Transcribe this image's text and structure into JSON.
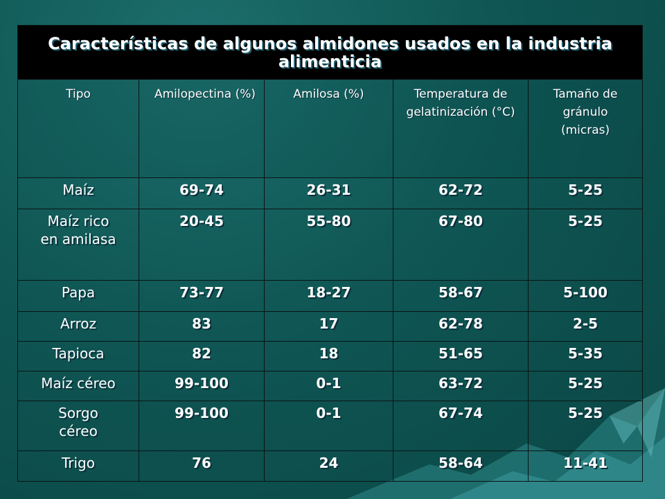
{
  "slide": {
    "title": "Características de algunos almidones usados en la industria alimenticia",
    "headers": [
      "Tipo",
      "Amilopectina (%)",
      "Amilosa (%)",
      "Temperatura de gelatinización (°C)",
      "Tamaño de gránulo (micras)"
    ],
    "rows": [
      [
        "Maíz",
        "69-74",
        "26-31",
        "62-72",
        "5-25"
      ],
      [
        "Maíz rico en amilasa",
        "20-45",
        "55-80",
        "67-80",
        "5-25"
      ],
      [
        "Papa",
        "73-77",
        "18-27",
        "58-67",
        "5-100"
      ],
      [
        "Arroz",
        "83",
        "17",
        "62-78",
        "2-5"
      ],
      [
        "Tapioca",
        "82",
        "18",
        "51-65",
        "5-35"
      ],
      [
        "Maíz céreo",
        "99-100",
        "0-1",
        "63-72",
        "5-25"
      ],
      [
        "Sorgo céreo",
        "99-100",
        "0-1",
        "67-74",
        "5-25"
      ],
      [
        "Trigo",
        "76",
        "24",
        "58-64",
        "11-41"
      ]
    ]
  },
  "colors": {
    "background": "#0f5654",
    "title_bar": "#000000",
    "text": "#ffffff"
  }
}
